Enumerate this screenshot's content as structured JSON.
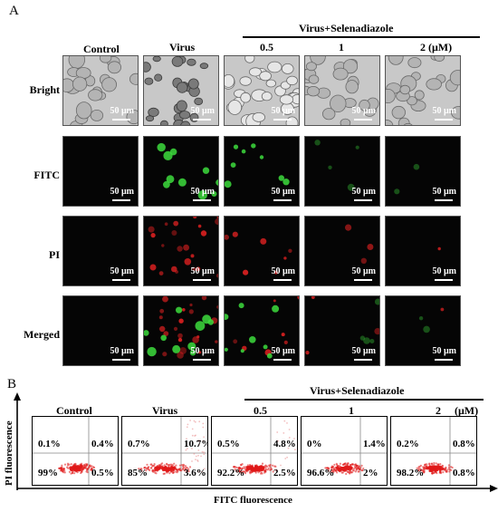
{
  "panel_a": {
    "letter": "A",
    "group_label": "Virus+Selenadiazole",
    "columns": [
      "Control",
      "Virus",
      "0.5",
      "1",
      "2 (μM)"
    ],
    "rows": [
      "Bright",
      "FITC",
      "PI",
      "Merged"
    ],
    "scale_label": "50 μm"
  },
  "panel_b": {
    "letter": "B",
    "group_label": "Virus+Selenadiazole",
    "columns": [
      "Control",
      "Virus",
      "0.5",
      "1",
      "2",
      "(μM)"
    ],
    "y_axis": "PI fluorescence",
    "x_axis": "FITC fluorescence",
    "quadrants": [
      {
        "ul": "0.1%",
        "ur": "0.4%",
        "ll": "99%",
        "lr": "0.5%"
      },
      {
        "ul": "0.7%",
        "ur": "10.7%",
        "ll": "85%",
        "lr": "3.6%"
      },
      {
        "ul": "0.5%",
        "ur": "4.8%",
        "ll": "92.2%",
        "lr": "2.5%"
      },
      {
        "ul": "0%",
        "ur": "1.4%",
        "ll": "96.6%",
        "lr": "2%"
      },
      {
        "ul": "0.2%",
        "ur": "0.8%",
        "ll": "98.2%",
        "lr": "0.8%"
      }
    ]
  },
  "colors": {
    "fitc": "#3ddc3d",
    "pi": "#d92020",
    "dot": "#e01818",
    "tile_dark": "#050505",
    "bright_bg": "#c8c8c8"
  }
}
